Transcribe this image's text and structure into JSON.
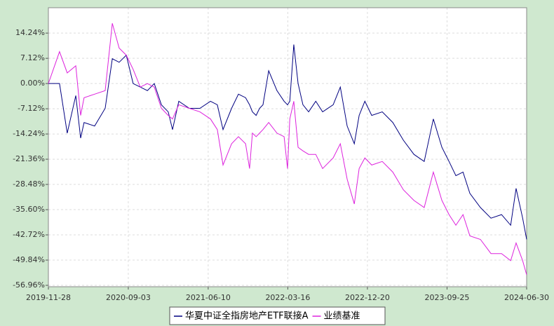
{
  "chart_data": {
    "type": "line",
    "x": [
      "2019-11-28",
      "2020-01-06",
      "2020-02-02",
      "2020-03-03",
      "2020-03-20",
      "2020-04-01",
      "2020-05-08",
      "2020-06-14",
      "2020-07-09",
      "2020-08-02",
      "2020-08-27",
      "2020-09-20",
      "2020-10-15",
      "2020-11-09",
      "2020-12-03",
      "2020-12-28",
      "2021-01-21",
      "2021-02-05",
      "2021-02-27",
      "2021-04-05",
      "2021-05-12",
      "2021-06-18",
      "2021-07-12",
      "2021-08-01",
      "2021-08-31",
      "2021-09-24",
      "2021-10-19",
      "2021-11-02",
      "2021-11-12",
      "2021-11-25",
      "2021-12-07",
      "2021-12-19",
      "2022-01-08",
      "2022-02-06",
      "2022-03-03",
      "2022-03-15",
      "2022-03-23",
      "2022-04-06",
      "2022-04-21",
      "2022-05-08",
      "2022-05-28",
      "2022-06-22",
      "2022-07-16",
      "2022-08-22",
      "2022-09-16",
      "2022-10-10",
      "2022-11-04",
      "2022-11-21",
      "2022-12-11",
      "2023-01-04",
      "2023-02-10",
      "2023-03-19",
      "2023-04-25",
      "2023-06-01",
      "2023-07-07",
      "2023-08-08",
      "2023-09-07",
      "2023-10-02",
      "2023-10-26",
      "2023-11-20",
      "2023-12-14",
      "2024-01-20",
      "2024-02-26",
      "2024-04-03",
      "2024-05-05",
      "2024-05-24",
      "2024-06-16",
      "2024-06-30"
    ],
    "series": [
      {
        "name": "华夏中证全指房地产ETF联接A",
        "color": "#000080",
        "values": [
          0,
          0,
          -14,
          -3.4,
          -15.4,
          -11,
          -12,
          -7,
          7,
          6,
          8,
          0,
          -1,
          -2,
          0,
          -6,
          -8,
          -13,
          -5,
          -7,
          -7,
          -5,
          -6,
          -13,
          -7,
          -3,
          -4,
          -6,
          -8,
          -9,
          -7,
          -6,
          3.6,
          -2,
          -5,
          -6,
          -5,
          11,
          0,
          -6,
          -8,
          -5,
          -8,
          -6,
          -1,
          -12,
          -17,
          -9,
          -5,
          -9,
          -8,
          -11,
          -16,
          -20,
          -22,
          -10,
          -18,
          -22,
          -26,
          -25,
          -31,
          -35,
          -38,
          -37,
          -40,
          -29.6,
          -38,
          -44
        ]
      },
      {
        "name": "业绩基准",
        "color": "#dd22dd",
        "values": [
          0,
          9,
          3,
          5,
          -9,
          -4,
          -3,
          -2,
          17,
          10,
          8,
          4,
          -1,
          0,
          -1,
          -7,
          -9,
          -10,
          -6,
          -7,
          -8,
          -10,
          -13,
          -23,
          -17,
          -15,
          -17,
          -24,
          -14,
          -15,
          -14,
          -13,
          -11,
          -14,
          -15,
          -24,
          -10,
          -5,
          -18,
          -19,
          -20,
          -20,
          -24,
          -21,
          -17,
          -27,
          -34,
          -24,
          -21,
          -23,
          -22,
          -25,
          -30,
          -33,
          -35,
          -25,
          -33,
          -37,
          -40,
          -37,
          -43,
          -44,
          -48,
          -48,
          -50,
          -45,
          -50,
          -54
        ]
      }
    ],
    "xlim": [
      "2019-11-28",
      "2024-06-30"
    ],
    "xticks": [
      "2019-11-28",
      "2020-09-03",
      "2021-06-10",
      "2022-03-16",
      "2022-12-20",
      "2023-09-25",
      "2024-06-30"
    ],
    "ylim": [
      -57.36,
      21.4
    ],
    "yticks": [
      {
        "value": 14.24,
        "label": "14.24%"
      },
      {
        "value": 7.12,
        "label": "7.12%"
      },
      {
        "value": 0,
        "label": "0.00%"
      },
      {
        "value": -7.12,
        "label": "-7.12%"
      },
      {
        "value": -14.24,
        "label": "-14.24%"
      },
      {
        "value": -21.36,
        "label": "-21.36%"
      },
      {
        "value": -28.48,
        "label": "-28.48%"
      },
      {
        "value": -35.6,
        "label": "-35.60%"
      },
      {
        "value": -42.72,
        "label": "-42.72%"
      },
      {
        "value": -49.84,
        "label": "-49.84%"
      },
      {
        "value": -56.96,
        "label": "-56.96%"
      }
    ],
    "grid": true
  }
}
